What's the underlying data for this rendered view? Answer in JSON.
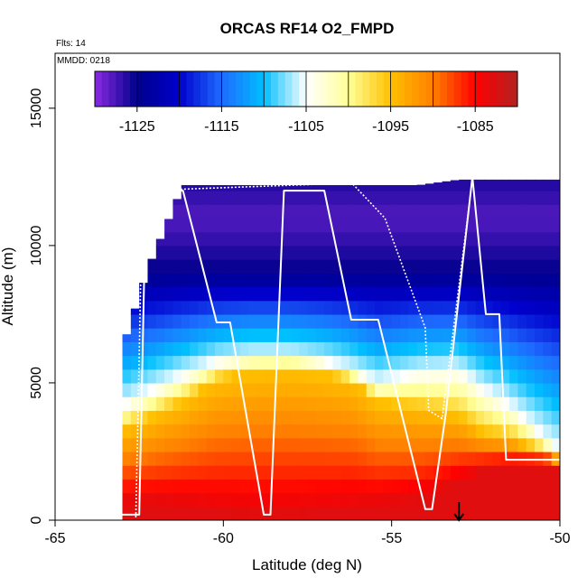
{
  "chart_data": {
    "type": "heatmap",
    "title": "ORCAS RF14 O2_FMPD",
    "flights_label": "Flts: 14",
    "date_label": "MMDD: 0218",
    "xlabel": "Latitude (deg N)",
    "ylabel": "Altitude (m)",
    "xlim": [
      -65,
      -50
    ],
    "ylim": [
      0,
      17000
    ],
    "x_ticks": [
      -65,
      -60,
      -55,
      -50
    ],
    "x_tick_labels": [
      "-65",
      "-60",
      "-55",
      "-50"
    ],
    "y_ticks": [
      0,
      5000,
      10000,
      15000
    ],
    "y_tick_labels": [
      "0",
      "5000",
      "10000",
      "15000"
    ],
    "colorbar": {
      "range": [
        -1130,
        -1080
      ],
      "ticks": [
        -1125,
        -1115,
        -1105,
        -1095,
        -1085
      ],
      "tick_labels": [
        "-1125",
        "-1115",
        "-1105",
        "-1095",
        "-1085"
      ],
      "colors": [
        "#8a2be2",
        "#00008b",
        "#0000cd",
        "#1e6bff",
        "#00bfff",
        "#ffffff",
        "#ffff99",
        "#ffc000",
        "#ff8000",
        "#ff0000",
        "#b22222"
      ]
    },
    "profile_anchors": {
      "latitude": [
        -63.0,
        -62.2,
        -61.2,
        -60.2,
        -59.2,
        -58.0,
        -57.0,
        -56.2,
        -55.4,
        -54.2,
        -53.0,
        -52.3,
        -51.5,
        -50.0
      ],
      "alt_surface_m": [
        600,
        600,
        500,
        300,
        200,
        200,
        300,
        400,
        500,
        700,
        1400,
        1800,
        2000,
        2200
      ],
      "alt_freezing_m": [
        3300,
        3700,
        4300,
        5100,
        5400,
        5500,
        5300,
        5100,
        4300,
        4100,
        3800,
        3200,
        3000,
        2200
      ],
      "alt_white_m": [
        4200,
        4700,
        5300,
        5800,
        6000,
        6000,
        5800,
        5500,
        5000,
        5400,
        5500,
        4800,
        4200,
        2500
      ],
      "alt_ceiling_m": [
        6300,
        9300,
        12200,
        12200,
        12200,
        12200,
        12200,
        12200,
        12200,
        12200,
        12400,
        12400,
        12400,
        12400
      ]
    },
    "flight_track": {
      "latitude": [
        -63.0,
        -62.9,
        -62.5,
        -62.3,
        -61.2,
        -60.2,
        -59.8,
        -58.8,
        -58.6,
        -58.2,
        -57.0,
        -56.2,
        -55.4,
        -54.0,
        -53.8,
        -53.4,
        -52.6,
        -52.2,
        -51.8,
        -51.6,
        -50.0
      ],
      "altitude_m": [
        200,
        200,
        200,
        12000,
        12000,
        7200,
        7200,
        200,
        200,
        12000,
        12000,
        7300,
        7300,
        400,
        400,
        3800,
        12500,
        7500,
        7500,
        2200,
        2200
      ]
    },
    "flight_track_2": {
      "latitude": [
        -62.6,
        -62.4,
        -56.8,
        -56.2,
        -55.2,
        -54.0,
        -53.9,
        -53.5,
        -52.6
      ],
      "altitude_m": [
        100,
        12000,
        12250,
        12300,
        11000,
        7000,
        4000,
        3700,
        12400
      ]
    },
    "marker": {
      "latitude": -53.0,
      "altitude_m": 0,
      "shape": "down-arrow"
    }
  }
}
